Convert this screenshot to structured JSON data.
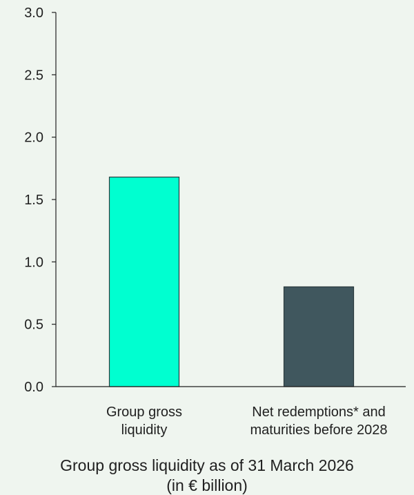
{
  "chart_data": {
    "type": "bar",
    "title": "Group gross liquidity as of 31 March 2026",
    "subtitle": "(in € billion)",
    "categories": [
      [
        "Group gross",
        "liquidity"
      ],
      [
        "Net redemptions* and",
        "maturities before 2028"
      ]
    ],
    "values": [
      1.68,
      0.8
    ],
    "colors": [
      "#00ffd0",
      "#40575e"
    ],
    "ylim": [
      0,
      3.0
    ],
    "yticks": [
      "0.0",
      "0.5",
      "1.0",
      "1.5",
      "2.0",
      "2.5",
      "3.0"
    ],
    "grid": false,
    "legend": "none"
  }
}
